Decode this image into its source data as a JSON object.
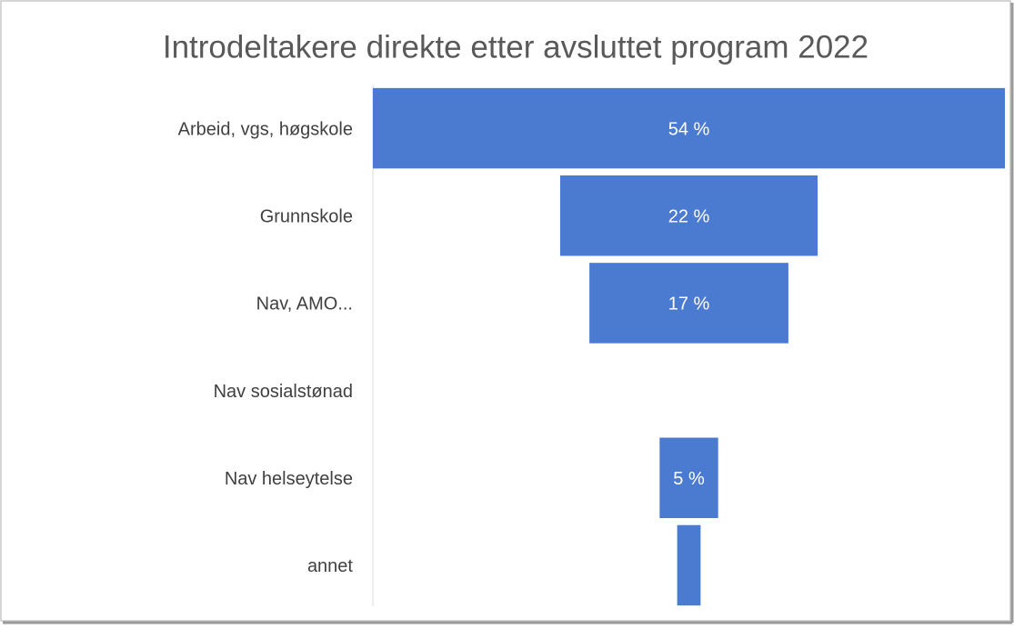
{
  "chart_data": {
    "type": "funnel",
    "title": "Introdeltakere direkte etter avsluttet program 2022",
    "categories": [
      "Arbeid, vgs, høgskole",
      "Grunnskole",
      "Nav, AMO...",
      "Nav sosialstønad",
      "Nav helseytelse",
      "annet"
    ],
    "values": [
      54,
      22,
      17,
      null,
      5,
      2
    ],
    "value_labels": [
      "54 %",
      "22 %",
      "17 %",
      null,
      "5 %",
      null
    ],
    "color": "#4a7bd1"
  }
}
